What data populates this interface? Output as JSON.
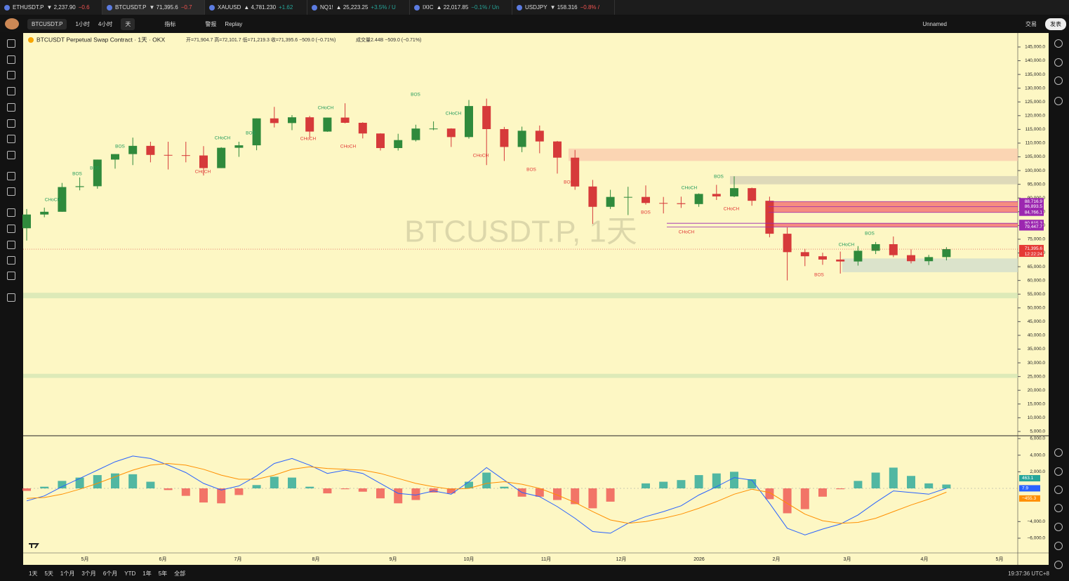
{
  "tabs": [
    {
      "symbol": "ETHUSDT.P",
      "price": "▼ 2,237.90",
      "change": "−0.6"
    },
    {
      "symbol": "BTCUSDT.P",
      "price": "▼ 71,395.6",
      "change": "−0.7"
    },
    {
      "symbol": "XAUUSD",
      "price": "▲ 4,781.230",
      "change": "+1.62"
    },
    {
      "symbol": "NQ1!",
      "price": "▲ 25,223.25",
      "change": "+3.5% / U"
    },
    {
      "symbol": "IXIC",
      "price": "▲ 22,017.85",
      "change": "−0.1% / Un"
    },
    {
      "symbol": "USDJPY",
      "price": "▼ 158.316",
      "change": "−0.8% /"
    }
  ],
  "toolbar": {
    "symbol": "BTCUSDT.P",
    "intervals": [
      "1小时",
      "4小时",
      "天"
    ],
    "indicators": "指标",
    "alerts": "警报",
    "replay": "Replay",
    "layout": "Unnamed",
    "trade": "交易",
    "publish": "发表"
  },
  "legend": {
    "title": "BTCUSDT Perpetual Swap Contract · 1天 · OKX",
    "ohlc": "开=71,904.7 高=72,101.7 低=71,219.3 收=71,395.6 −509.0 (−0.71%)",
    "volume": "成交量2.44B −509.0 (−0.71%)"
  },
  "watermark": "BTCUSDT.P, 1天",
  "chart_data": [
    {
      "type": "candlestick",
      "up_color": "#2f8a3c",
      "down_color": "#d63a3a",
      "ylim": [
        3700,
        150100
      ],
      "yticks": [
        {
          "value": 145000,
          "label": "145,000.0"
        },
        {
          "value": 140000,
          "label": "140,000.0"
        },
        {
          "value": 135000,
          "label": "135,000.0"
        },
        {
          "value": 130000,
          "label": "130,000.0"
        },
        {
          "value": 125000,
          "label": "125,000.0"
        },
        {
          "value": 120000,
          "label": "120,000.0"
        },
        {
          "value": 115000,
          "label": "115,000.0"
        },
        {
          "value": 110000,
          "label": "110,000.0"
        },
        {
          "value": 105000,
          "label": "105,000.0"
        },
        {
          "value": 100000,
          "label": "100,000.0"
        },
        {
          "value": 95000,
          "label": "95,000.0"
        },
        {
          "value": 90000,
          "label": "90,000.0"
        },
        {
          "value": 85000,
          "label": "85,000.0"
        },
        {
          "value": 80000,
          "label": "80,000.0"
        },
        {
          "value": 75000,
          "label": "75,000.0"
        },
        {
          "value": 70000,
          "label": "70,000.0"
        },
        {
          "value": 65000,
          "label": "65,000.0"
        },
        {
          "value": 60000,
          "label": "60,000.0"
        },
        {
          "value": 55000,
          "label": "55,000.0"
        },
        {
          "value": 50000,
          "label": "50,000.0"
        },
        {
          "value": 45000,
          "label": "45,000.0"
        },
        {
          "value": 40000,
          "label": "40,000.0"
        },
        {
          "value": 35000,
          "label": "35,000.0"
        },
        {
          "value": 30000,
          "label": "30,000.0"
        },
        {
          "value": 25000,
          "label": "25,000.0"
        },
        {
          "value": 20000,
          "label": "20,000.0"
        },
        {
          "value": 15000,
          "label": "15,000.0"
        },
        {
          "value": 10000,
          "label": "10,000.0"
        },
        {
          "value": 5000,
          "label": "5,000.0"
        }
      ],
      "time_labels": [
        "5月",
        "6月",
        "7月",
        "8月",
        "9月",
        "10月",
        "11月",
        "12月",
        "2026",
        "2月",
        "3月",
        "4月",
        "5月"
      ],
      "ohlc": [
        [
          79000,
          86000,
          74500,
          84000
        ],
        [
          84000,
          86500,
          83000,
          85000
        ],
        [
          85000,
          95500,
          85000,
          94000
        ],
        [
          94000,
          97500,
          92800,
          94300
        ],
        [
          94300,
          104000,
          93400,
          104000
        ],
        [
          104000,
          106000,
          100700,
          106000
        ],
        [
          106000,
          112000,
          102000,
          109000
        ],
        [
          109000,
          110500,
          103000,
          105700
        ],
        [
          105700,
          110500,
          100400,
          105600
        ],
        [
          105600,
          110500,
          103000,
          105500
        ],
        [
          105500,
          108900,
          98200,
          100900
        ],
        [
          100900,
          108500,
          100900,
          108300
        ],
        [
          108300,
          110500,
          105000,
          109200
        ],
        [
          109200,
          119000,
          107400,
          119000
        ],
        [
          119000,
          123200,
          115700,
          117300
        ],
        [
          117300,
          120200,
          114700,
          119400
        ],
        [
          119400,
          119900,
          112000,
          114200
        ],
        [
          114200,
          119300,
          114100,
          119300
        ],
        [
          119300,
          124500,
          117200,
          117400
        ],
        [
          117400,
          117600,
          111700,
          113500
        ],
        [
          113500,
          113600,
          107300,
          108200
        ],
        [
          108200,
          113400,
          107300,
          111100
        ],
        [
          111100,
          116700,
          110600,
          115300
        ],
        [
          115300,
          117900,
          114700,
          115300
        ],
        [
          115300,
          115400,
          108600,
          112200
        ],
        [
          112200,
          125700,
          111600,
          123500
        ],
        [
          123500,
          126200,
          102000,
          115100
        ],
        [
          115100,
          115900,
          103500,
          108600
        ],
        [
          108600,
          116000,
          106700,
          114500
        ],
        [
          114500,
          116400,
          106300,
          110600
        ],
        [
          110600,
          110800,
          98900,
          104700
        ],
        [
          104700,
          107500,
          93000,
          94200
        ],
        [
          94200,
          96600,
          80600,
          86800
        ],
        [
          86800,
          93000,
          86000,
          90400
        ],
        [
          90400,
          94100,
          83800,
          90400
        ],
        [
          90400,
          94600,
          87600,
          88200
        ],
        [
          88200,
          90400,
          84400,
          88100
        ],
        [
          88100,
          90500,
          86400,
          87800
        ],
        [
          87800,
          91700,
          86800,
          91500
        ],
        [
          91500,
          94800,
          89300,
          90600
        ],
        [
          90600,
          97900,
          90300,
          93600
        ],
        [
          93600,
          93800,
          87200,
          89000
        ],
        [
          89000,
          90500,
          75700,
          77000
        ],
        [
          77000,
          79300,
          60000,
          70300
        ],
        [
          70300,
          71500,
          65200,
          68800
        ],
        [
          68800,
          70100,
          65700,
          67600
        ],
        [
          67600,
          70500,
          62500,
          66900
        ],
        [
          66900,
          72500,
          65400,
          70800
        ],
        [
          70800,
          74000,
          69600,
          73200
        ],
        [
          73200,
          76000,
          68500,
          69200
        ],
        [
          69200,
          71300,
          66200,
          67000
        ],
        [
          67000,
          69300,
          65600,
          68500
        ],
        [
          68500,
          72100,
          67300,
          71395.6
        ]
      ],
      "zones": [
        {
          "low": 103500,
          "high": 108000,
          "color": "#f9c9ad"
        },
        {
          "low": 95000,
          "high": 98000,
          "color": "#d3cfb6"
        },
        {
          "low": 84766.1,
          "high": 88716.9,
          "color": "#f26a6a"
        },
        {
          "low": 79447.7,
          "high": 80815.3,
          "color": "#f26a6a"
        },
        {
          "low": 63000,
          "high": 68000,
          "color": "#cfdccd"
        },
        {
          "low": 53500,
          "high": 55500,
          "color": "#d2e5b4"
        },
        {
          "low": 24500,
          "high": 26000,
          "color": "#d2e5b4"
        }
      ],
      "price_labels": [
        {
          "value": 88716.9,
          "label": "88,716.9"
        },
        {
          "value": 86893.5,
          "label": "86,893.5"
        },
        {
          "value": 84766.1,
          "label": "84,766.1"
        },
        {
          "value": 80815.3,
          "label": "80,815.3"
        },
        {
          "value": 79447.7,
          "label": "79,447.7"
        }
      ],
      "last_price": {
        "value": 71395.6,
        "label": "71,395.6",
        "countdown": "12:22:24"
      },
      "annotations": [
        {
          "text": "CHoCH",
          "color": "#1f9a5a"
        },
        {
          "text": "BOS",
          "color": "#1f9a5a"
        },
        {
          "text": "BOS",
          "color": "#1f9a5a"
        },
        {
          "text": "BOS",
          "color": "#1f9a5a"
        },
        {
          "text": "CHoCH",
          "color": "#e03434"
        },
        {
          "text": "CHoCH",
          "color": "#1f9a5a"
        },
        {
          "text": "BOS",
          "color": "#1f9a5a"
        },
        {
          "text": "CHoCH",
          "color": "#e03434"
        },
        {
          "text": "CHoCH",
          "color": "#1f9a5a"
        },
        {
          "text": "CHoCH",
          "color": "#e03434"
        },
        {
          "text": "BOS",
          "color": "#1f9a5a"
        },
        {
          "text": "CHoCH",
          "color": "#1f9a5a"
        },
        {
          "text": "CHoCH",
          "color": "#e03434"
        },
        {
          "text": "BOS",
          "color": "#e03434"
        },
        {
          "text": "BOS",
          "color": "#e03434"
        },
        {
          "text": "BOS",
          "color": "#e03434"
        },
        {
          "text": "CHoCH",
          "color": "#1f9a5a"
        },
        {
          "text": "BOS",
          "color": "#1f9a5a"
        },
        {
          "text": "CHoCH",
          "color": "#e03434"
        },
        {
          "text": "CHoCH",
          "color": "#e03434"
        },
        {
          "text": "BOS",
          "color": "#1f9a5a"
        },
        {
          "text": "CHoCH",
          "color": "#1f9a5a"
        },
        {
          "text": "BOS",
          "color": "#e03434"
        }
      ]
    },
    {
      "type": "macd",
      "ylim": [
        -7775,
        6254
      ],
      "yticks": [
        {
          "value": 6000,
          "label": "6,000.0"
        },
        {
          "value": 4000,
          "label": "4,000.0"
        },
        {
          "value": 2000,
          "label": "2,000.0"
        },
        {
          "value": -4000,
          "label": "−4,000.0"
        },
        {
          "value": -6000,
          "label": "−6,000.0"
        }
      ],
      "histogram": {
        "color": "#26a69a",
        "color_negative": "#ef5350",
        "values": [
          -300,
          200,
          900,
          1300,
          1600,
          1800,
          1700,
          800,
          -200,
          -900,
          -1700,
          -1800,
          -800,
          400,
          1400,
          1300,
          200,
          -600,
          -100,
          -400,
          -1200,
          -1800,
          -1400,
          -500,
          -600,
          800,
          1900,
          200,
          -1000,
          -1000,
          -1400,
          -1900,
          -2400,
          -1600,
          0,
          600,
          800,
          1000,
          1600,
          1800,
          2000,
          1100,
          -1300,
          -3000,
          -2500,
          -1000,
          -100,
          900,
          1900,
          2500,
          1500,
          600,
          463.1
        ]
      },
      "series": [
        {
          "color": "#2962ff",
          "values": [
            -1500,
            -900,
            200,
            1200,
            2200,
            3200,
            3900,
            3600,
            2800,
            1900,
            600,
            -200,
            300,
            1500,
            3000,
            3600,
            2800,
            1800,
            2200,
            1800,
            600,
            -600,
            -800,
            -300,
            -700,
            800,
            2500,
            1000,
            -500,
            -1000,
            -2200,
            -3600,
            -5200,
            -5400,
            -4200,
            -3400,
            -2800,
            -2100,
            -800,
            200,
            1300,
            1000,
            -1800,
            -4800,
            -5600,
            -4900,
            -4300,
            -3200,
            -1700,
            -300,
            -500,
            -700,
            7.9
          ]
        },
        {
          "color": "#ff8f00",
          "values": [
            -1200,
            -1100,
            -700,
            -100,
            600,
            1400,
            2200,
            2800,
            3000,
            2800,
            2300,
            1600,
            1100,
            1100,
            1600,
            2300,
            2600,
            2400,
            2300,
            2200,
            1800,
            1200,
            600,
            200,
            -100,
            0,
            600,
            800,
            500,
            0,
            -800,
            -1700,
            -2800,
            -3800,
            -4200,
            -4000,
            -3600,
            -3100,
            -2400,
            -1600,
            -700,
            -100,
            -500,
            -1800,
            -3100,
            -3900,
            -4200,
            -4100,
            -3600,
            -2800,
            -2000,
            -1300,
            -455.3
          ]
        }
      ],
      "last_labels": [
        {
          "value": 463.1,
          "label": "463.1",
          "color": "#26a69a"
        },
        {
          "value": 7.9,
          "label": "7.9",
          "color": "#2962ff"
        },
        {
          "value": -455.3,
          "label": "−455.3",
          "color": "#ff8f00"
        }
      ]
    }
  ],
  "bottom": {
    "ranges": [
      "1天",
      "5天",
      "1个月",
      "3个月",
      "6个月",
      "YTD",
      "1年",
      "5年",
      "全部"
    ],
    "clock": "19:37:36 UTC+8"
  }
}
